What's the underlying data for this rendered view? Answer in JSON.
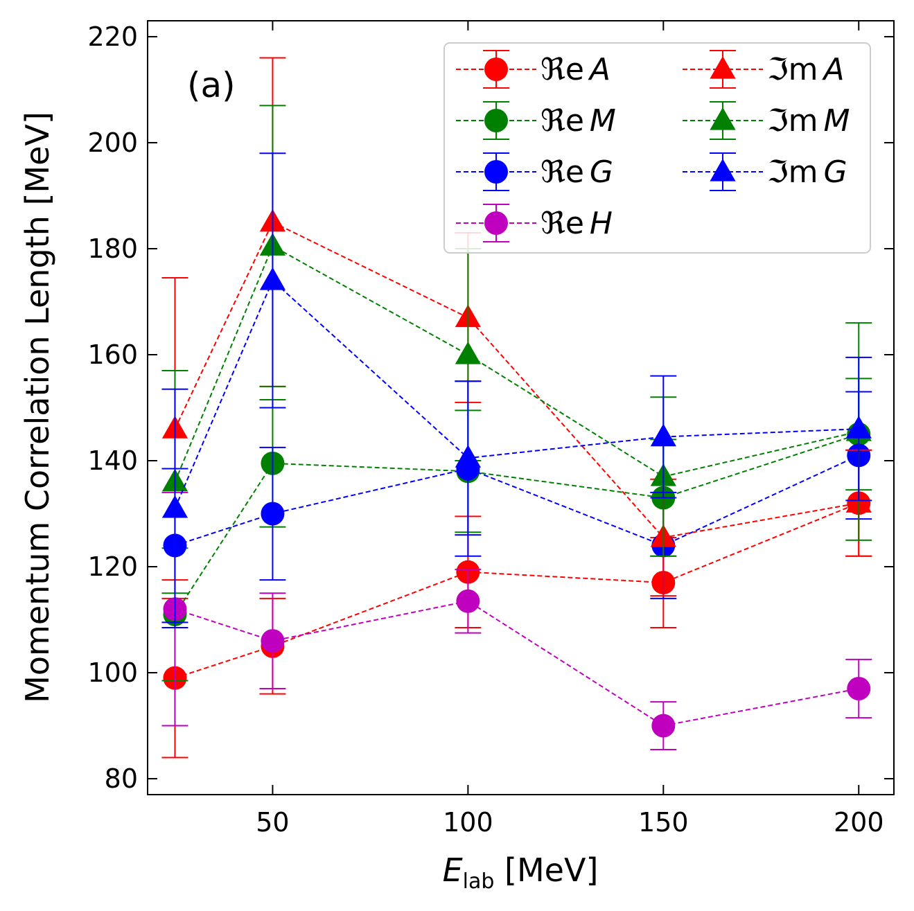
{
  "chart_data": {
    "type": "scatter",
    "panel_label": "(a)",
    "xlabel": {
      "main": "E",
      "sub": "lab",
      "rest": " [MeV]"
    },
    "ylabel": "Momentum Correlation Length [MeV]",
    "xlim": [
      18,
      209
    ],
    "ylim": [
      77,
      223
    ],
    "xticks": [
      50,
      100,
      150,
      200
    ],
    "yticks": [
      80,
      100,
      120,
      140,
      160,
      180,
      200,
      220
    ],
    "legend_position": "top-right",
    "legend_columns": 2,
    "x": [
      25,
      50,
      100,
      150,
      200
    ],
    "series": [
      {
        "name": "ReA",
        "prefix": "ℜe",
        "sym": "A",
        "color": "#ff0000",
        "marker": "circle",
        "values": [
          99,
          105,
          119,
          117,
          132
        ],
        "errors": [
          15,
          9,
          10.5,
          8.5,
          10
        ]
      },
      {
        "name": "ReM",
        "prefix": "ℜe",
        "sym": "M",
        "color": "#008000",
        "marker": "circle",
        "values": [
          111,
          139.5,
          138,
          133,
          145
        ],
        "errors": [
          12.5,
          12,
          11.5,
          11,
          10.5
        ]
      },
      {
        "name": "ReG",
        "prefix": "ℜe",
        "sym": "G",
        "color": "#0000ff",
        "marker": "circle",
        "values": [
          124,
          130,
          138.5,
          124,
          141
        ],
        "errors": [
          14.5,
          12.5,
          16.5,
          10,
          12
        ]
      },
      {
        "name": "ReH",
        "prefix": "ℜe",
        "sym": "H",
        "color": "#bf00bf",
        "marker": "circle",
        "values": [
          112,
          106,
          113.5,
          90,
          97
        ],
        "errors": [
          22,
          9,
          6,
          4.5,
          5.5
        ]
      },
      {
        "name": "ImA",
        "prefix": "ℑm",
        "sym": "A",
        "color": "#ff0000",
        "marker": "triangle",
        "values": [
          146,
          185,
          167,
          125.5,
          132
        ],
        "errors": [
          28.5,
          31,
          16,
          11,
          10
        ]
      },
      {
        "name": "ImM",
        "prefix": "ℑm",
        "sym": "M",
        "color": "#008000",
        "marker": "triangle",
        "values": [
          136,
          180.5,
          160,
          137,
          145.5
        ],
        "errors": [
          21,
          26.5,
          20,
          15,
          20.5
        ]
      },
      {
        "name": "ImG",
        "prefix": "ℑm",
        "sym": "G",
        "color": "#0000ff",
        "marker": "triangle",
        "values": [
          131,
          174,
          140.5,
          144.5,
          146
        ],
        "errors": [
          22.5,
          24,
          14.5,
          11.5,
          13.5
        ]
      }
    ]
  }
}
